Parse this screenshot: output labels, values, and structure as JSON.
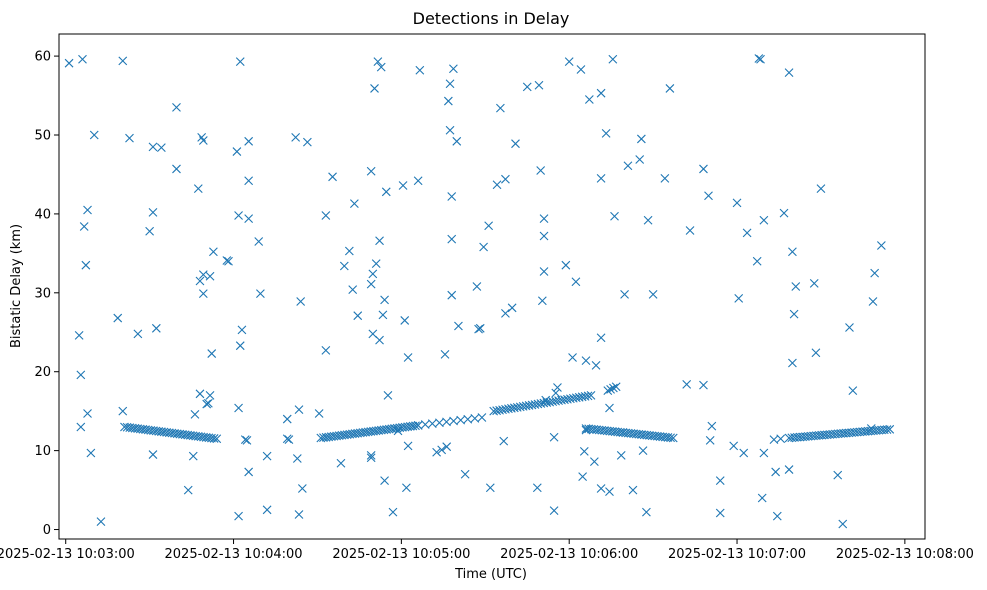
{
  "chart_data": {
    "type": "scatter",
    "title": "Detections in Delay",
    "xlabel": "Time (UTC)",
    "ylabel": "Bistatic Delay (km)",
    "marker": "x",
    "color": "#1f77b4",
    "x_unit": "minutes after 2025-02-13 10:03:00",
    "xlim": [
      -0.04,
      5.12
    ],
    "ylim": [
      -1.2,
      62.8
    ],
    "xticks": [
      {
        "value": 0,
        "label": "2025-02-13 10:03:00"
      },
      {
        "value": 1,
        "label": "2025-02-13 10:04:00"
      },
      {
        "value": 2,
        "label": "2025-02-13 10:05:00"
      },
      {
        "value": 3,
        "label": "2025-02-13 10:06:00"
      },
      {
        "value": 4,
        "label": "2025-02-13 10:07:00"
      },
      {
        "value": 5,
        "label": "2025-02-13 10:08:00"
      }
    ],
    "yticks": [
      0,
      10,
      20,
      30,
      40,
      50,
      60
    ],
    "track_segments": [
      {
        "x0": 0.35,
        "x1": 0.9,
        "y0": 13.0,
        "y1": 11.5,
        "n": 36
      },
      {
        "x0": 1.52,
        "x1": 2.1,
        "y0": 11.6,
        "y1": 13.2,
        "n": 38
      },
      {
        "x0": 2.1,
        "x1": 2.48,
        "y0": 13.2,
        "y1": 14.2,
        "n": 10
      },
      {
        "x0": 2.55,
        "x1": 3.13,
        "y0": 15.0,
        "y1": 17.0,
        "n": 34
      },
      {
        "x0": 3.1,
        "x1": 3.62,
        "y0": 12.8,
        "y1": 11.6,
        "n": 34
      },
      {
        "x0": 4.31,
        "x1": 4.91,
        "y0": 11.6,
        "y1": 12.7,
        "n": 38
      },
      {
        "x0": 3.23,
        "x1": 3.28,
        "y0": 17.6,
        "y1": 18.1,
        "n": 4
      }
    ],
    "noise_points": [
      [
        0.02,
        59.1
      ],
      [
        0.1,
        59.6
      ],
      [
        0.34,
        59.4
      ],
      [
        0.08,
        24.6
      ],
      [
        0.09,
        19.6
      ],
      [
        0.09,
        13.0
      ],
      [
        0.11,
        38.4
      ],
      [
        0.13,
        40.5
      ],
      [
        0.12,
        33.5
      ],
      [
        0.13,
        14.7
      ],
      [
        0.15,
        9.7
      ],
      [
        0.17,
        50.0
      ],
      [
        0.21,
        1.0
      ],
      [
        0.31,
        26.8
      ],
      [
        0.34,
        15.0
      ],
      [
        0.38,
        49.6
      ],
      [
        0.43,
        24.8
      ],
      [
        0.5,
        37.8
      ],
      [
        0.52,
        48.5
      ],
      [
        0.52,
        40.2
      ],
      [
        0.52,
        9.5
      ],
      [
        0.54,
        25.5
      ],
      [
        0.57,
        48.4
      ],
      [
        0.66,
        53.5
      ],
      [
        0.66,
        45.7
      ],
      [
        0.73,
        5.0
      ],
      [
        0.76,
        9.3
      ],
      [
        0.77,
        14.6
      ],
      [
        0.79,
        43.2
      ],
      [
        0.8,
        31.5
      ],
      [
        0.8,
        17.2
      ],
      [
        0.81,
        49.7
      ],
      [
        0.82,
        49.3
      ],
      [
        0.82,
        29.9
      ],
      [
        0.82,
        32.3
      ],
      [
        0.84,
        15.9
      ],
      [
        0.85,
        16.0
      ],
      [
        0.86,
        17.0
      ],
      [
        0.86,
        32.1
      ],
      [
        0.87,
        22.3
      ],
      [
        0.88,
        35.2
      ],
      [
        0.96,
        34.1
      ],
      [
        0.97,
        34.0
      ],
      [
        1.02,
        47.9
      ],
      [
        1.03,
        15.4
      ],
      [
        1.03,
        39.8
      ],
      [
        1.03,
        1.7
      ],
      [
        1.04,
        23.3
      ],
      [
        1.05,
        25.3
      ],
      [
        1.04,
        59.3
      ],
      [
        1.07,
        11.4
      ],
      [
        1.09,
        44.2
      ],
      [
        1.09,
        39.4
      ],
      [
        1.09,
        49.2
      ],
      [
        1.09,
        7.3
      ],
      [
        1.08,
        11.3
      ],
      [
        1.15,
        36.5
      ],
      [
        1.16,
        29.9
      ],
      [
        1.2,
        9.3
      ],
      [
        1.2,
        2.5
      ],
      [
        1.32,
        11.5
      ],
      [
        1.32,
        14.0
      ],
      [
        1.33,
        11.4
      ],
      [
        1.37,
        49.7
      ],
      [
        1.38,
        9.0
      ],
      [
        1.39,
        15.2
      ],
      [
        1.39,
        1.9
      ],
      [
        1.4,
        28.9
      ],
      [
        1.41,
        5.2
      ],
      [
        1.44,
        49.1
      ],
      [
        1.51,
        14.7
      ],
      [
        1.55,
        22.7
      ],
      [
        1.55,
        39.8
      ],
      [
        1.59,
        44.7
      ],
      [
        1.64,
        8.4
      ],
      [
        1.66,
        33.4
      ],
      [
        1.69,
        35.3
      ],
      [
        1.71,
        30.4
      ],
      [
        1.72,
        41.3
      ],
      [
        1.74,
        27.1
      ],
      [
        1.82,
        45.4
      ],
      [
        1.82,
        31.1
      ],
      [
        1.83,
        32.4
      ],
      [
        1.83,
        24.8
      ],
      [
        1.82,
        9.1
      ],
      [
        1.82,
        9.4
      ],
      [
        1.84,
        55.9
      ],
      [
        1.85,
        33.7
      ],
      [
        1.86,
        59.3
      ],
      [
        1.87,
        36.6
      ],
      [
        1.87,
        24.0
      ],
      [
        1.88,
        58.6
      ],
      [
        1.89,
        27.2
      ],
      [
        1.9,
        29.1
      ],
      [
        1.91,
        42.8
      ],
      [
        1.92,
        17.0
      ],
      [
        1.9,
        6.2
      ],
      [
        1.95,
        2.2
      ],
      [
        1.98,
        12.5
      ],
      [
        2.01,
        43.6
      ],
      [
        2.02,
        26.5
      ],
      [
        2.03,
        5.3
      ],
      [
        2.04,
        21.8
      ],
      [
        2.04,
        10.6
      ],
      [
        2.1,
        44.2
      ],
      [
        2.11,
        58.2
      ],
      [
        2.21,
        9.8
      ],
      [
        2.24,
        10.1
      ],
      [
        2.26,
        22.2
      ],
      [
        2.27,
        10.5
      ],
      [
        2.28,
        54.3
      ],
      [
        2.29,
        56.5
      ],
      [
        2.29,
        50.6
      ],
      [
        2.3,
        42.2
      ],
      [
        2.3,
        36.8
      ],
      [
        2.3,
        29.7
      ],
      [
        2.31,
        58.4
      ],
      [
        2.33,
        49.2
      ],
      [
        2.34,
        25.8
      ],
      [
        2.38,
        7.0
      ],
      [
        2.45,
        30.8
      ],
      [
        2.46,
        25.4
      ],
      [
        2.47,
        25.5
      ],
      [
        2.49,
        35.8
      ],
      [
        2.52,
        38.5
      ],
      [
        2.53,
        5.3
      ],
      [
        2.57,
        43.7
      ],
      [
        2.59,
        53.4
      ],
      [
        2.61,
        11.2
      ],
      [
        2.62,
        44.4
      ],
      [
        2.62,
        27.4
      ],
      [
        2.66,
        28.1
      ],
      [
        2.68,
        48.9
      ],
      [
        2.75,
        56.1
      ],
      [
        2.81,
        5.3
      ],
      [
        2.82,
        56.3
      ],
      [
        2.83,
        45.5
      ],
      [
        2.84,
        29.0
      ],
      [
        2.85,
        32.7
      ],
      [
        2.85,
        39.4
      ],
      [
        2.85,
        37.2
      ],
      [
        2.86,
        16.4
      ],
      [
        2.91,
        11.7
      ],
      [
        2.91,
        2.4
      ],
      [
        2.92,
        17.3
      ],
      [
        2.93,
        18.0
      ],
      [
        2.98,
        33.5
      ],
      [
        3.0,
        59.3
      ],
      [
        3.02,
        21.8
      ],
      [
        3.04,
        31.4
      ],
      [
        3.07,
        58.3
      ],
      [
        3.08,
        6.7
      ],
      [
        3.09,
        9.9
      ],
      [
        3.1,
        21.4
      ],
      [
        3.1,
        12.6
      ],
      [
        3.12,
        54.5
      ],
      [
        3.15,
        8.6
      ],
      [
        3.16,
        20.8
      ],
      [
        3.19,
        55.3
      ],
      [
        3.19,
        44.5
      ],
      [
        3.19,
        24.3
      ],
      [
        3.19,
        5.2
      ],
      [
        3.22,
        50.2
      ],
      [
        3.24,
        15.4
      ],
      [
        3.24,
        4.8
      ],
      [
        3.26,
        59.6
      ],
      [
        3.27,
        39.7
      ],
      [
        3.31,
        9.4
      ],
      [
        3.32,
        12.3
      ],
      [
        3.33,
        29.8
      ],
      [
        3.35,
        46.1
      ],
      [
        3.38,
        5.0
      ],
      [
        3.42,
        46.9
      ],
      [
        3.43,
        49.5
      ],
      [
        3.44,
        10.0
      ],
      [
        3.46,
        2.2
      ],
      [
        3.47,
        39.2
      ],
      [
        3.5,
        29.8
      ],
      [
        3.57,
        44.5
      ],
      [
        3.6,
        55.9
      ],
      [
        3.7,
        18.4
      ],
      [
        3.72,
        37.9
      ],
      [
        3.8,
        18.3
      ],
      [
        3.8,
        45.7
      ],
      [
        3.83,
        42.3
      ],
      [
        3.84,
        11.3
      ],
      [
        3.85,
        13.1
      ],
      [
        3.9,
        6.2
      ],
      [
        3.9,
        2.1
      ],
      [
        3.98,
        10.6
      ],
      [
        4.0,
        41.4
      ],
      [
        4.01,
        29.3
      ],
      [
        4.04,
        9.7
      ],
      [
        4.06,
        37.6
      ],
      [
        4.12,
        34.0
      ],
      [
        4.13,
        59.7
      ],
      [
        4.14,
        59.6
      ],
      [
        4.16,
        39.2
      ],
      [
        4.16,
        9.7
      ],
      [
        4.15,
        4.0
      ],
      [
        4.22,
        11.4
      ],
      [
        4.23,
        7.3
      ],
      [
        4.24,
        1.7
      ],
      [
        4.26,
        11.5
      ],
      [
        4.28,
        40.1
      ],
      [
        4.31,
        57.9
      ],
      [
        4.31,
        7.6
      ],
      [
        4.33,
        35.2
      ],
      [
        4.33,
        21.1
      ],
      [
        4.34,
        27.3
      ],
      [
        4.35,
        30.8
      ],
      [
        4.46,
        31.2
      ],
      [
        4.47,
        22.4
      ],
      [
        4.5,
        43.2
      ],
      [
        4.6,
        6.9
      ],
      [
        4.63,
        0.7
      ],
      [
        4.67,
        25.6
      ],
      [
        4.69,
        17.6
      ],
      [
        4.81,
        28.9
      ],
      [
        4.82,
        32.5
      ],
      [
        4.86,
        36.0
      ],
      [
        4.8,
        12.8
      ]
    ]
  }
}
